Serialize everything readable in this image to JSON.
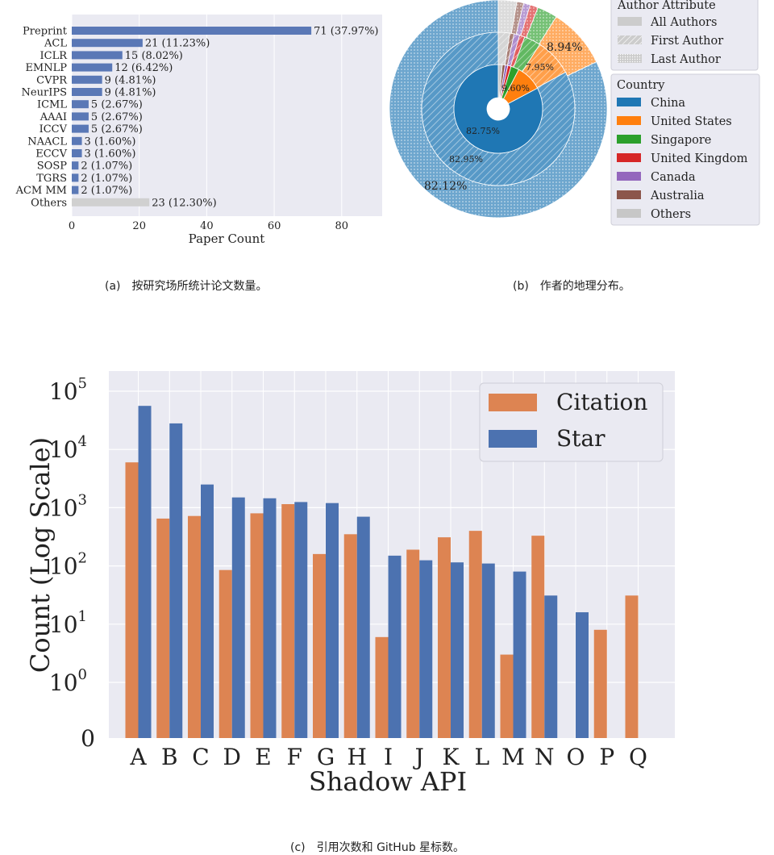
{
  "captions": {
    "a": "(a)　按研究场所统计论文数量。",
    "b": "(b)　作者的地理分布。",
    "c": "(c)　引用次数和 GitHub 星标数。"
  },
  "chart_data": [
    {
      "id": "venues",
      "type": "bar",
      "orientation": "horizontal",
      "categories": [
        "Preprint",
        "ACL",
        "ICLR",
        "EMNLP",
        "CVPR",
        "NeurIPS",
        "ICML",
        "AAAI",
        "ICCV",
        "NAACL",
        "ECCV",
        "SOSP",
        "TGRS",
        "ACM MM",
        "Others"
      ],
      "values": [
        71,
        21,
        15,
        12,
        9,
        9,
        5,
        5,
        5,
        3,
        3,
        2,
        2,
        2,
        23
      ],
      "data_labels": [
        "71 (37.97%)",
        "21 (11.23%)",
        "15 (8.02%)",
        "12 (6.42%)",
        "9 (4.81%)",
        "9 (4.81%)",
        "5 (2.67%)",
        "5 (2.67%)",
        "5 (2.67%)",
        "3 (1.60%)",
        "3 (1.60%)",
        "2 (1.07%)",
        "2 (1.07%)",
        "2 (1.07%)",
        "23 (12.30%)"
      ],
      "xlabel": "Paper Count",
      "xlim": [
        0,
        92
      ],
      "xticks": [
        0,
        20,
        40,
        60,
        80
      ],
      "grid": true,
      "colors": {
        "bar": "#5a78b6",
        "others": "#d0d0d0",
        "background": "#eaeaf2"
      }
    },
    {
      "id": "countries",
      "type": "pie",
      "subtype": "nested-donut",
      "rings": [
        {
          "name": "All Authors",
          "values": [
            82.12,
            8.94,
            3.0,
            1.2,
            1.0,
            1.0,
            2.74
          ]
        },
        {
          "name": "First Author",
          "values": [
            82.95,
            7.95,
            3.5,
            1.1,
            1.2,
            0.9,
            2.4
          ]
        },
        {
          "name": "Last Author",
          "values": [
            82.75,
            9.6,
            3.0,
            1.2,
            1.0,
            1.0,
            1.45
          ]
        }
      ],
      "inner_labels": {
        "all_authors": [
          "82.12%",
          "8.94%"
        ],
        "first_author": [
          "82.95%",
          "7.95%"
        ],
        "last_author": [
          "82.75%",
          "9.60%"
        ]
      },
      "legend_author": {
        "title": "Author Attribute",
        "items": [
          "All Authors",
          "First Author",
          "Last Author"
        ]
      },
      "legend_country": {
        "title": "Country",
        "items": [
          "China",
          "United States",
          "Singapore",
          "United Kingdom",
          "Canada",
          "Australia",
          "Others"
        ]
      },
      "colors": [
        "#1f77b4",
        "#ff7f0e",
        "#2ca02c",
        "#d62728",
        "#9467bd",
        "#8c564b",
        "#c7c7c7"
      ],
      "legend_placement": "right"
    },
    {
      "id": "shadow-api",
      "type": "bar",
      "categories": [
        "A",
        "B",
        "C",
        "D",
        "E",
        "F",
        "G",
        "H",
        "I",
        "J",
        "K",
        "L",
        "M",
        "N",
        "O",
        "P",
        "Q"
      ],
      "series": [
        {
          "name": "Citation",
          "values": [
            6000,
            650,
            720,
            85,
            800,
            1150,
            160,
            350,
            6,
            190,
            310,
            400,
            3,
            330,
            0,
            8,
            31
          ]
        },
        {
          "name": "Star",
          "values": [
            56000,
            28000,
            2500,
            1500,
            1450,
            1250,
            1200,
            700,
            150,
            125,
            115,
            110,
            80,
            31,
            16,
            0,
            0
          ]
        }
      ],
      "xlabel": "Shadow API",
      "ylabel": "Count (Log Scale)",
      "yscale": "symlog",
      "ylim": [
        0,
        100000
      ],
      "yticks": [
        "0",
        "10^0",
        "10^1",
        "10^2",
        "10^3",
        "10^4",
        "10^5"
      ],
      "grid": true,
      "legend_placement": "top-right",
      "colors": {
        "Citation": "#dd8452",
        "Star": "#4c72b0",
        "background": "#eaeaf2"
      }
    }
  ]
}
